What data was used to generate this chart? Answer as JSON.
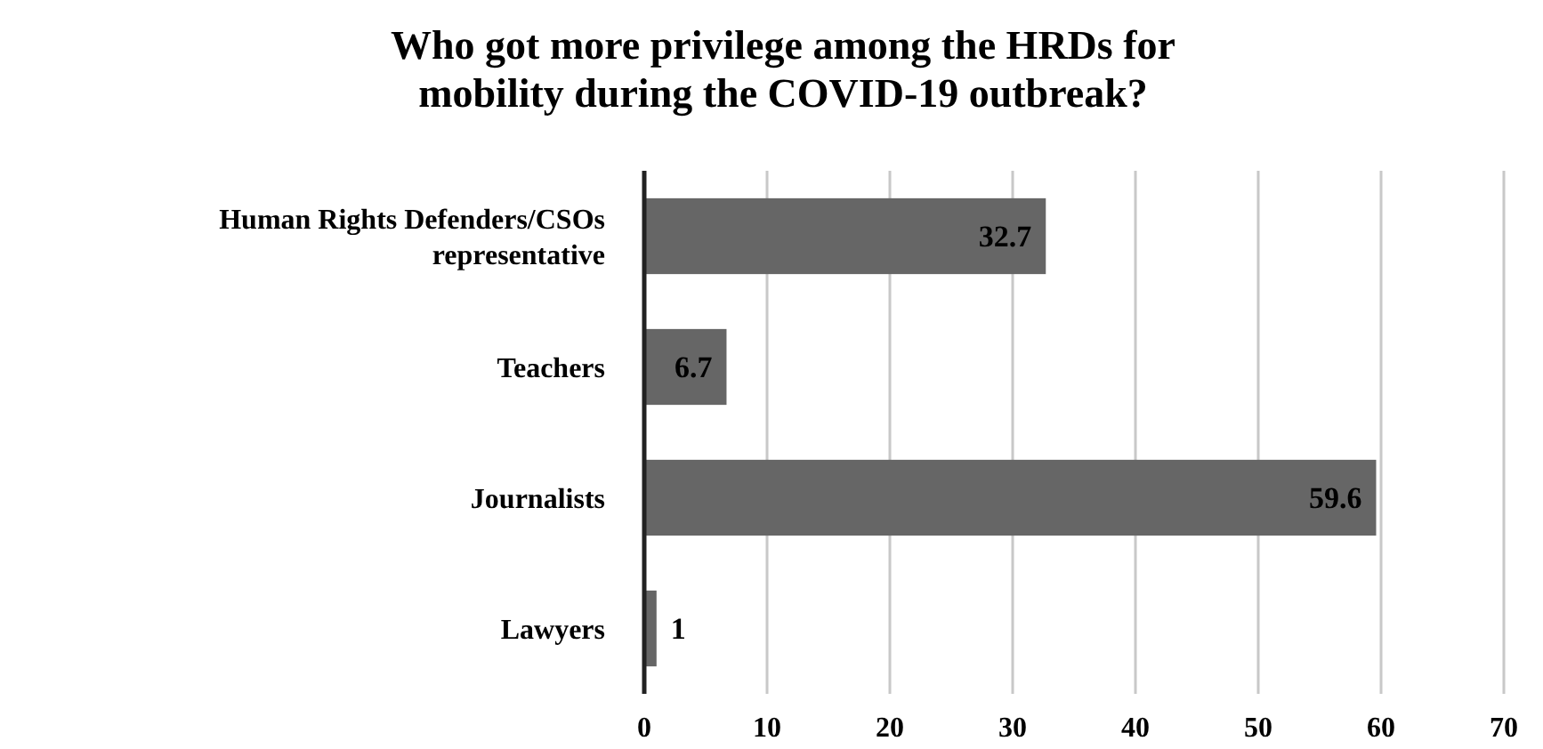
{
  "chart_data": {
    "type": "bar",
    "orientation": "horizontal",
    "title": "Who got more privilege among the HRDs for mobility during the COVID-19 outbreak?",
    "categories": [
      "Human Rights Defenders/CSOs representative",
      "Teachers",
      "Journalists",
      "Lawyers"
    ],
    "values": [
      32.7,
      6.7,
      59.6,
      1
    ],
    "color": "#666666",
    "xlim": [
      0,
      70
    ],
    "xticks": [
      0,
      10,
      20,
      30,
      40,
      50,
      60,
      70
    ],
    "grid": "x",
    "data_labels": true
  }
}
